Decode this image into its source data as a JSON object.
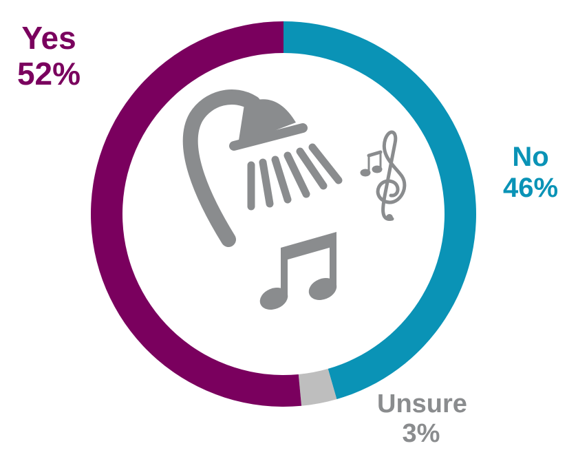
{
  "chart_data": {
    "type": "pie",
    "variant": "donut",
    "slices": [
      {
        "label": "No",
        "value": 46,
        "value_label": "46%",
        "color": "#0A93B6"
      },
      {
        "label": "Unsure",
        "value": 3,
        "value_label": "3%",
        "color": "#BEBEBE"
      },
      {
        "label": "Yes",
        "value": 52,
        "value_label": "52%",
        "color": "#7A005E"
      }
    ],
    "start_angle_deg": 0,
    "direction": "clockwise",
    "center_icons": [
      "shower-head-icon",
      "music-notes-icon",
      "treble-clef-icon"
    ],
    "icon_color": "#8A8C8E"
  }
}
